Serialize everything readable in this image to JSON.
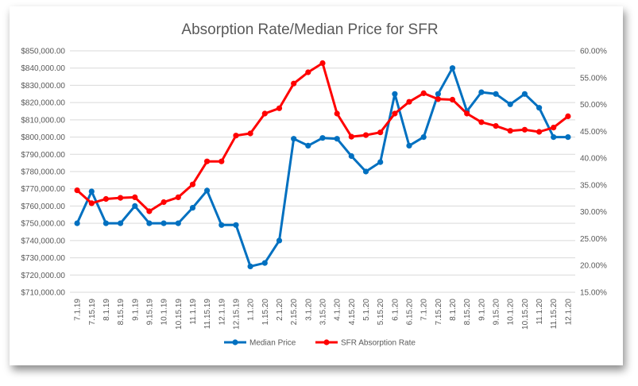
{
  "chart_data": {
    "type": "line",
    "title": "Absorption Rate/Median Price for SFR",
    "categories": [
      "7.1.19",
      "7.15.19",
      "8.1.19",
      "8.15.19",
      "9.1.19",
      "9.15.19",
      "10.1.19",
      "10.15.19",
      "11.1.19",
      "11.15.19",
      "12.1.19",
      "12.15.19",
      "1.1.20",
      "1.15.20",
      "2.1.20",
      "2.15.20",
      "3.1.20",
      "3.15.20",
      "4.1.20",
      "4.15.20",
      "5.1.20",
      "5.15.20",
      "6.1.20",
      "6.15.20",
      "7.1.20",
      "7.15.20",
      "8.1.20",
      "8.15.20",
      "9.1.20",
      "9.15.20",
      "10.1.20",
      "10.15.20",
      "11.1.20",
      "11.15.20",
      "12.1.20"
    ],
    "y_left": {
      "ylim": [
        710000,
        850000
      ],
      "ticks": [
        "$710,000.00",
        "$720,000.00",
        "$730,000.00",
        "$740,000.00",
        "$750,000.00",
        "$760,000.00",
        "$770,000.00",
        "$780,000.00",
        "$790,000.00",
        "$800,000.00",
        "$810,000.00",
        "$820,000.00",
        "$830,000.00",
        "$840,000.00",
        "$850,000.00"
      ]
    },
    "y_right": {
      "ylim": [
        0.15,
        0.6
      ],
      "ticks": [
        "15.00%",
        "20.00%",
        "25.00%",
        "30.00%",
        "35.00%",
        "40.00%",
        "45.00%",
        "50.00%",
        "55.00%",
        "60.00%"
      ]
    },
    "series": [
      {
        "name": "Median Price",
        "axis": "left",
        "color": "#0070c0",
        "values": [
          750000,
          768500,
          750000,
          750000,
          760000,
          750000,
          750000,
          750000,
          759000,
          769000,
          749000,
          749000,
          725000,
          727000,
          740000,
          799000,
          795000,
          799500,
          799000,
          789000,
          780000,
          785500,
          825000,
          795000,
          800000,
          825000,
          840000,
          815000,
          826000,
          825000,
          819000,
          825000,
          817000,
          800000,
          800000
        ]
      },
      {
        "name": "SFR Absorption Rate",
        "axis": "right",
        "color": "#ff0000",
        "values": [
          0.34,
          0.316,
          0.324,
          0.326,
          0.327,
          0.301,
          0.318,
          0.327,
          0.351,
          0.394,
          0.394,
          0.442,
          0.446,
          0.483,
          0.493,
          0.539,
          0.56,
          0.577,
          0.483,
          0.44,
          0.443,
          0.448,
          0.483,
          0.505,
          0.521,
          0.51,
          0.509,
          0.483,
          0.467,
          0.46,
          0.451,
          0.453,
          0.449,
          0.457,
          0.478
        ]
      }
    ],
    "legend": "bottom",
    "grid": true
  }
}
